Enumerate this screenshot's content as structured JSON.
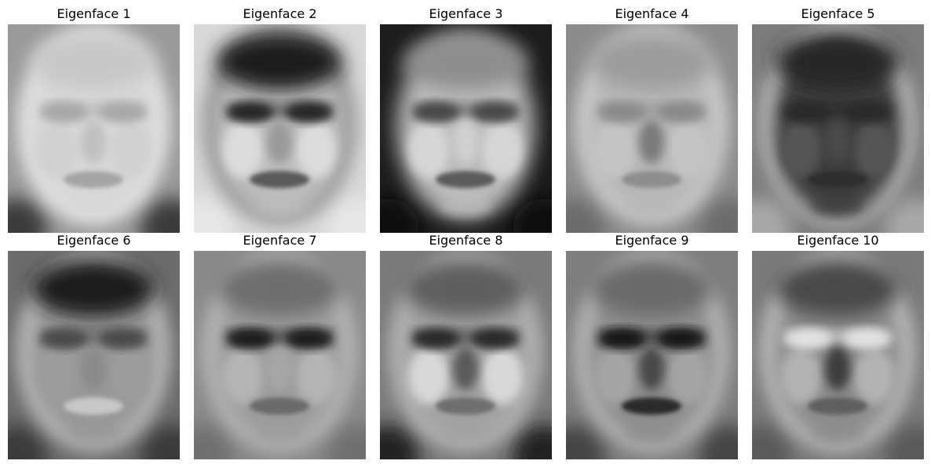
{
  "panels": [
    {
      "title": "Eigenface 1",
      "variant": "bright-mean"
    },
    {
      "title": "Eigenface 2",
      "variant": "dark-hair"
    },
    {
      "title": "Eigenface 3",
      "variant": "dark-surround"
    },
    {
      "title": "Eigenface 4",
      "variant": "soft-light"
    },
    {
      "title": "Eigenface 5",
      "variant": "dark-center"
    },
    {
      "title": "Eigenface 6",
      "variant": "dark-band"
    },
    {
      "title": "Eigenface 7",
      "variant": "eye-contrast"
    },
    {
      "title": "Eigenface 8",
      "variant": "side-shadow"
    },
    {
      "title": "Eigenface 9",
      "variant": "dark-eyes"
    },
    {
      "title": "Eigenface 10",
      "variant": "bright-cheeks"
    }
  ],
  "colors": {
    "background": "#ffffff",
    "title": "#000000"
  }
}
